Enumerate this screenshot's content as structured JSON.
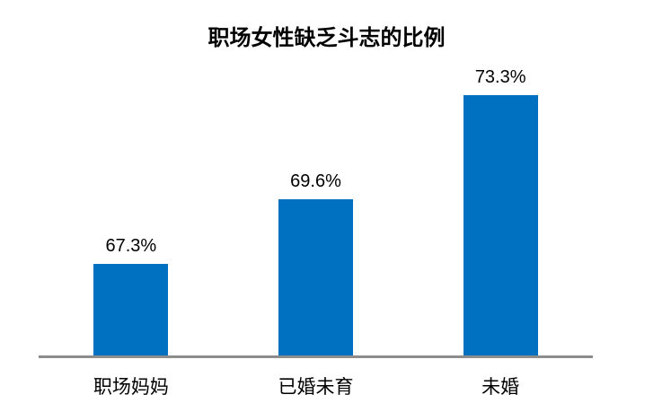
{
  "title": "职场女性缺乏斗志的比例",
  "chart_data": {
    "type": "bar",
    "title": "职场女性缺乏斗志的比例",
    "categories": [
      "职场妈妈",
      "已婚未育",
      "未婚"
    ],
    "values": [
      67.3,
      69.6,
      73.3
    ],
    "value_labels": [
      "67.3%",
      "69.6%",
      "73.3%"
    ],
    "unit": "%",
    "xlabel": "",
    "ylabel": "",
    "ylim": [
      64,
      77
    ],
    "grid": false,
    "legend": false,
    "y_axis_visible": false,
    "data_labels_position": "above-bars",
    "bar_color": "#0070C0",
    "axis_line_color": "#8C8C8C",
    "text_color": "#000000",
    "background_color": "#FFFFFF"
  }
}
